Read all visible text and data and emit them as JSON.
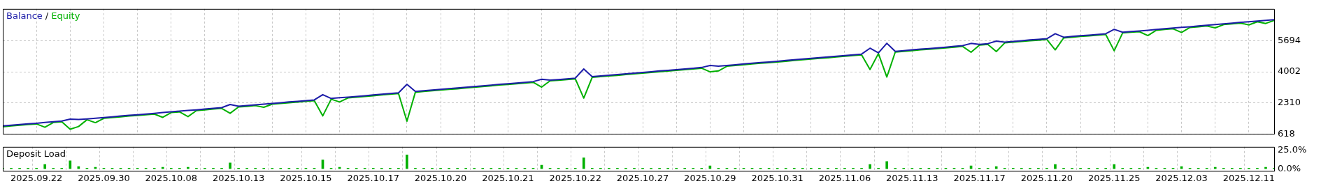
{
  "chart_data": [
    {
      "type": "line",
      "legend": "top left",
      "annotations": [
        "/"
      ],
      "marker": "none",
      "grid": true,
      "tick_labels": "y",
      "categories": [
        null,
        null,
        null,
        null,
        "2025.09.22",
        null,
        null,
        null,
        null,
        null,
        null,
        null,
        "2025.09.30",
        null,
        null,
        null,
        null,
        null,
        null,
        null,
        "2025.10.08",
        null,
        null,
        null,
        null,
        null,
        null,
        null,
        "2025.10.13",
        null,
        null,
        null,
        null,
        null,
        null,
        null,
        "2025.10.15",
        null,
        null,
        null,
        null,
        null,
        null,
        null,
        "2025.10.17",
        null,
        null,
        null,
        null,
        null,
        null,
        null,
        "2025.10.20",
        null,
        null,
        null,
        null,
        null,
        null,
        null,
        "2025.10.21",
        null,
        null,
        null,
        null,
        null,
        null,
        null,
        "2025.10.22",
        null,
        null,
        null,
        null,
        null,
        null,
        null,
        "2025.10.27",
        null,
        null,
        null,
        null,
        null,
        null,
        null,
        "2025.10.29",
        null,
        null,
        null,
        null,
        null,
        null,
        null,
        "2025.10.31",
        null,
        null,
        null,
        null,
        null,
        null,
        null,
        "2025.11.06",
        null,
        null,
        null,
        null,
        null,
        null,
        null,
        "2025.11.13",
        null,
        null,
        null,
        null,
        null,
        null,
        null,
        "2025.11.17",
        null,
        null,
        null,
        null,
        null,
        null,
        null,
        "2025.11.20",
        null,
        null,
        null,
        null,
        null,
        null,
        null,
        "2025.11.25",
        null,
        null,
        null,
        null,
        null,
        null,
        null,
        "2025.12.03",
        null,
        null,
        null,
        null,
        null,
        null,
        null,
        "2025.12.11",
        null,
        null,
        null
      ],
      "ylim": [
        618,
        7433
      ],
      "yticks": [
        618,
        2310,
        4002,
        5694
      ],
      "series": [
        {
          "name": "Equity",
          "color": "#00b000",
          "values": [
            1010,
            1050,
            1090,
            1130,
            1160,
            980,
            1240,
            1280,
            870,
            1020,
            1390,
            1230,
            1470,
            1510,
            1550,
            1590,
            1620,
            1660,
            1700,
            1520,
            1780,
            1820,
            1560,
            1890,
            1930,
            1970,
            2010,
            1740,
            2090,
            2120,
            2160,
            2070,
            2240,
            2280,
            2320,
            2350,
            2390,
            2430,
            1600,
            2510,
            2360,
            2580,
            2620,
            2660,
            2700,
            2740,
            2780,
            2820,
            1310,
            2890,
            2930,
            2970,
            3010,
            3050,
            3080,
            3120,
            3160,
            3200,
            3240,
            3280,
            3310,
            3350,
            3390,
            3430,
            3170,
            3510,
            3540,
            3580,
            3620,
            2570,
            3700,
            3740,
            3780,
            3810,
            3850,
            3890,
            3930,
            3970,
            4010,
            4040,
            4080,
            4120,
            4160,
            4200,
            4000,
            4050,
            4310,
            4350,
            4390,
            4430,
            4470,
            4500,
            4540,
            4580,
            4620,
            4660,
            4700,
            4740,
            4770,
            4810,
            4850,
            4890,
            4930,
            4130,
            5000,
            3720,
            5080,
            5120,
            5160,
            5200,
            5230,
            5270,
            5310,
            5350,
            5390,
            5070,
            5460,
            5500,
            5110,
            5580,
            5620,
            5660,
            5700,
            5730,
            5770,
            5200,
            5850,
            5890,
            5930,
            5960,
            6000,
            6040,
            5150,
            6120,
            6160,
            6190,
            5980,
            6270,
            6310,
            6350,
            6150,
            6420,
            6460,
            6500,
            6400,
            6580,
            6620,
            6660,
            6560,
            6730,
            6640,
            6810
          ]
        },
        {
          "name": "Balance",
          "color": "#1c1ca8",
          "values": [
            1050,
            1090,
            1130,
            1170,
            1200,
            1240,
            1280,
            1320,
            1420,
            1400,
            1430,
            1470,
            1510,
            1550,
            1590,
            1630,
            1660,
            1700,
            1740,
            1780,
            1820,
            1860,
            1900,
            1930,
            1970,
            2010,
            2050,
            2220,
            2130,
            2160,
            2200,
            2240,
            2280,
            2320,
            2360,
            2390,
            2430,
            2470,
            2760,
            2550,
            2590,
            2620,
            2660,
            2700,
            2740,
            2780,
            2820,
            2860,
            3320,
            2930,
            2970,
            3010,
            3050,
            3090,
            3120,
            3160,
            3200,
            3240,
            3280,
            3320,
            3350,
            3390,
            3430,
            3470,
            3600,
            3550,
            3580,
            3620,
            3660,
            4160,
            3740,
            3780,
            3820,
            3850,
            3890,
            3930,
            3970,
            4010,
            4050,
            4080,
            4120,
            4160,
            4200,
            4240,
            4350,
            4310,
            4350,
            4390,
            4430,
            4470,
            4510,
            4540,
            4580,
            4620,
            4660,
            4700,
            4740,
            4780,
            4810,
            4850,
            4890,
            4930,
            4970,
            5290,
            5040,
            5560,
            5120,
            5160,
            5200,
            5240,
            5270,
            5310,
            5350,
            5390,
            5430,
            5550,
            5500,
            5540,
            5680,
            5620,
            5660,
            5700,
            5740,
            5770,
            5810,
            6080,
            5890,
            5930,
            5970,
            6000,
            6040,
            6080,
            6320,
            6160,
            6200,
            6230,
            6270,
            6310,
            6350,
            6390,
            6430,
            6460,
            6500,
            6540,
            6580,
            6620,
            6660,
            6700,
            6730,
            6770,
            6810,
            6850
          ]
        }
      ]
    },
    {
      "type": "bar",
      "title": "Deposit Load",
      "color": "#00b000",
      "grid": "x",
      "categories": [
        null,
        null,
        null,
        null,
        "2025.09.22",
        null,
        null,
        null,
        null,
        null,
        null,
        null,
        "2025.09.30",
        null,
        null,
        null,
        null,
        null,
        null,
        null,
        "2025.10.08",
        null,
        null,
        null,
        null,
        null,
        null,
        null,
        "2025.10.13",
        null,
        null,
        null,
        null,
        null,
        null,
        null,
        "2025.10.15",
        null,
        null,
        null,
        null,
        null,
        null,
        null,
        "2025.10.17",
        null,
        null,
        null,
        null,
        null,
        null,
        null,
        "2025.10.20",
        null,
        null,
        null,
        null,
        null,
        null,
        null,
        "2025.10.21",
        null,
        null,
        null,
        null,
        null,
        null,
        null,
        "2025.10.22",
        null,
        null,
        null,
        null,
        null,
        null,
        null,
        "2025.10.27",
        null,
        null,
        null,
        null,
        null,
        null,
        null,
        "2025.10.29",
        null,
        null,
        null,
        null,
        null,
        null,
        null,
        "2025.10.31",
        null,
        null,
        null,
        null,
        null,
        null,
        null,
        "2025.11.06",
        null,
        null,
        null,
        null,
        null,
        null,
        null,
        "2025.11.13",
        null,
        null,
        null,
        null,
        null,
        null,
        null,
        "2025.11.17",
        null,
        null,
        null,
        null,
        null,
        null,
        null,
        "2025.11.20",
        null,
        null,
        null,
        null,
        null,
        null,
        null,
        "2025.11.25",
        null,
        null,
        null,
        null,
        null,
        null,
        null,
        "2025.12.03",
        null,
        null,
        null,
        null,
        null,
        null,
        null,
        "2025.12.11",
        null,
        null,
        null
      ],
      "ylim": [
        -3,
        30
      ],
      "yticks": [
        {
          "value": 0,
          "label": "0.0%"
        },
        {
          "value": 25,
          "label": "25.0%"
        }
      ],
      "values": [
        1,
        1,
        1,
        1,
        1,
        6,
        1,
        1,
        11,
        3,
        1,
        2,
        1,
        1,
        1,
        1,
        1,
        1,
        1,
        2,
        1,
        1,
        2,
        1,
        1,
        1,
        1,
        8,
        1,
        1,
        1,
        1,
        1,
        1,
        1,
        1,
        1,
        1,
        12,
        1,
        2,
        1,
        1,
        1,
        1,
        1,
        1,
        1,
        19,
        1,
        1,
        1,
        1,
        1,
        1,
        1,
        1,
        1,
        1,
        1,
        1,
        1,
        1,
        1,
        5,
        1,
        1,
        1,
        1,
        15,
        1,
        1,
        1,
        1,
        1,
        1,
        1,
        1,
        1,
        1,
        1,
        1,
        1,
        1,
        4,
        1,
        1,
        1,
        1,
        1,
        1,
        1,
        1,
        1,
        1,
        1,
        1,
        1,
        1,
        1,
        1,
        1,
        1,
        6,
        1,
        10,
        1,
        1,
        1,
        1,
        1,
        1,
        1,
        1,
        1,
        4,
        1,
        1,
        3,
        1,
        1,
        1,
        1,
        1,
        1,
        6,
        1,
        1,
        1,
        1,
        1,
        1,
        6,
        1,
        1,
        1,
        2,
        1,
        1,
        1,
        3,
        1,
        1,
        1,
        2,
        1,
        1,
        1,
        1,
        1,
        2,
        1
      ]
    }
  ]
}
